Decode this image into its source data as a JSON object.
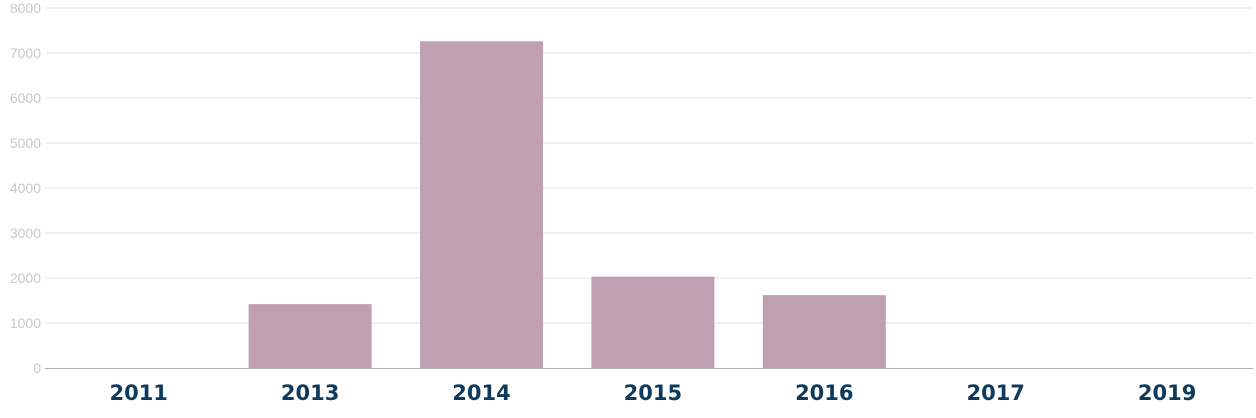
{
  "chart_data": {
    "type": "bar",
    "title": "",
    "xlabel": "",
    "ylabel": "",
    "categories": [
      "2011",
      "2013",
      "2014",
      "2015",
      "2016",
      "2017",
      "2019"
    ],
    "values": [
      0,
      1420,
      7260,
      2030,
      1620,
      0,
      0
    ],
    "ylim": [
      0,
      8000
    ],
    "yticks": [
      0,
      1000,
      2000,
      3000,
      4000,
      5000,
      6000,
      7000,
      8000
    ],
    "grid": true,
    "legend": "none",
    "colors": {
      "bar": "#bfa0b3",
      "grid": "#e3e3e3",
      "axis": "#b0b0b0",
      "ytick_text": "#c8c8c8",
      "xtick_text": "#0f3a5c"
    }
  }
}
